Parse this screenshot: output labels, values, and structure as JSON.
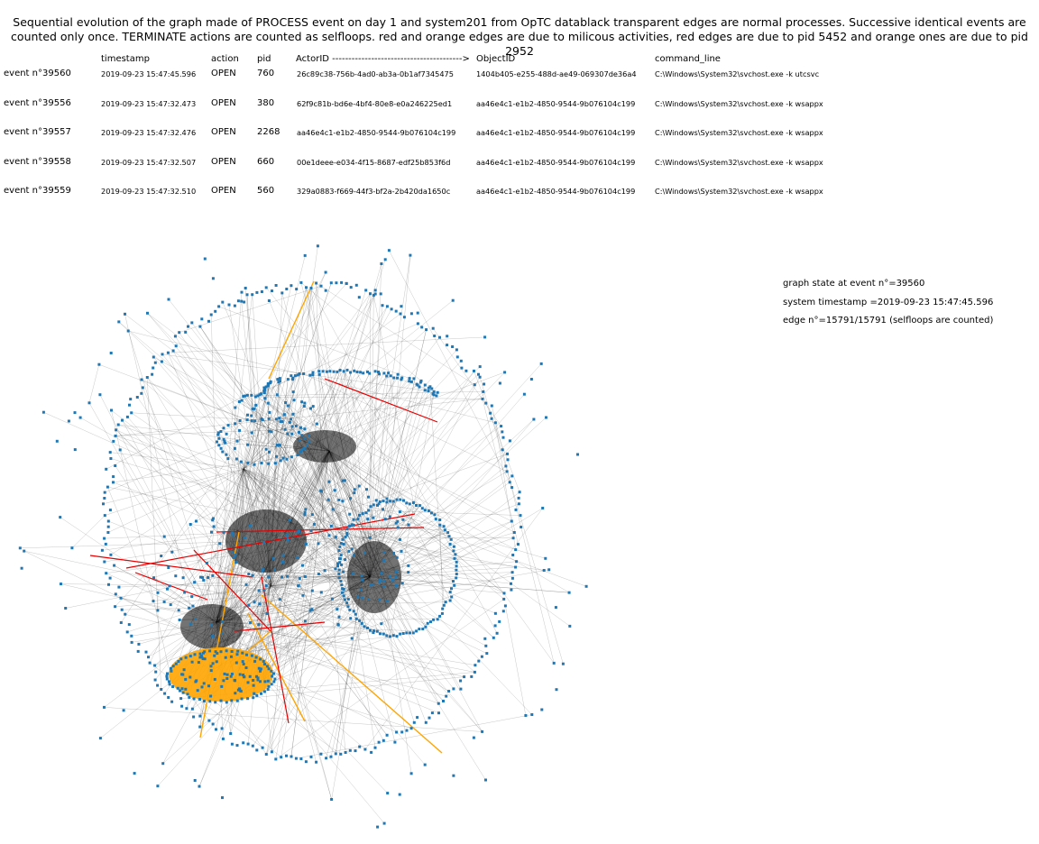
{
  "title": "Sequential evolution of the graph made of PROCESS event on day 1 and system201 from OpTC datablack transparent edges are normal processes. Successive identical events are counted only once. TERMINATE actions are counted as selfloops. red and orange edges are due to milicous activities, red edges are due to pid 5452 and orange ones are due to pid 2952",
  "table": {
    "headers": [
      "timestamp",
      "action",
      "pid",
      "ActorID ---------------------------------------->",
      "ObjectID",
      "command_line"
    ],
    "rows": [
      {
        "event": "event n°39560",
        "timestamp": "2019-09-23 15:47:45.596",
        "action": "OPEN",
        "pid": "760",
        "actor": "26c89c38-756b-4ad0-ab3a-0b1af7345475",
        "object": "1404b405-e255-488d-ae49-069307de36a4",
        "cmd": "C:\\Windows\\System32\\svchost.exe -k utcsvc"
      },
      {
        "event": "event n°39556",
        "timestamp": "2019-09-23 15:47:32.473",
        "action": "OPEN",
        "pid": "380",
        "actor": "62f9c81b-bd6e-4bf4-80e8-e0a246225ed1",
        "object": "aa46e4c1-e1b2-4850-9544-9b076104c199",
        "cmd": "C:\\Windows\\System32\\svchost.exe -k wsappx"
      },
      {
        "event": "event n°39557",
        "timestamp": "2019-09-23 15:47:32.476",
        "action": "OPEN",
        "pid": "2268",
        "actor": "aa46e4c1-e1b2-4850-9544-9b076104c199",
        "object": "aa46e4c1-e1b2-4850-9544-9b076104c199",
        "cmd": "C:\\Windows\\System32\\svchost.exe -k wsappx"
      },
      {
        "event": "event n°39558",
        "timestamp": "2019-09-23 15:47:32.507",
        "action": "OPEN",
        "pid": "660",
        "actor": "00e1deee-e034-4f15-8687-edf25b853f6d",
        "object": "aa46e4c1-e1b2-4850-9544-9b076104c199",
        "cmd": "C:\\Windows\\System32\\svchost.exe -k wsappx"
      },
      {
        "event": "event n°39559",
        "timestamp": "2019-09-23 15:47:32.510",
        "action": "OPEN",
        "pid": "560",
        "actor": "329a0883-f669-44f3-bf2a-2b420da1650c",
        "object": "aa46e4c1-e1b2-4850-9544-9b076104c199",
        "cmd": "C:\\Windows\\System32\\svchost.exe -k wsappx"
      }
    ]
  },
  "stats": {
    "state": "graph state at event n°=39560",
    "timestamp": "system timestamp =2019-09-23 15:47:45.596",
    "edges": "edge n°=15791/15791 (selfloops are counted)"
  },
  "colors": {
    "node": "#1f77b4",
    "normal_edge": "#000000",
    "red_edge": "#e60000",
    "orange_edge": "#ffa500"
  }
}
